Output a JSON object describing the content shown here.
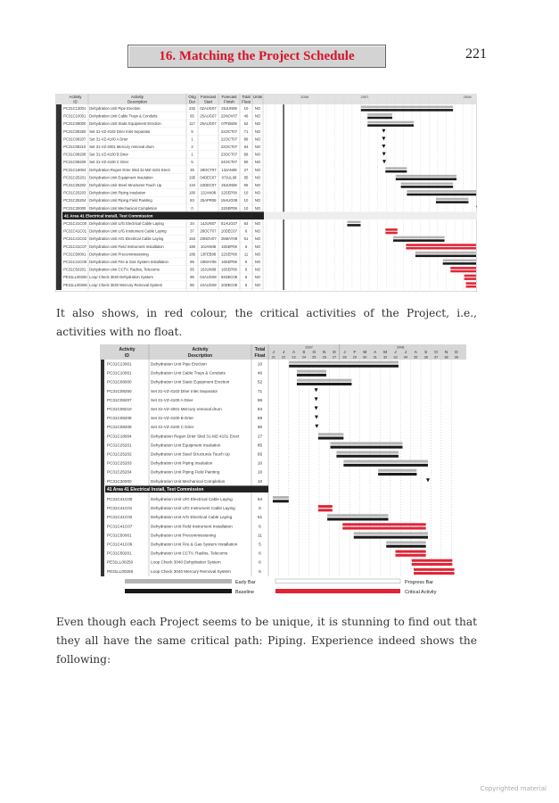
{
  "header": {
    "chapter_title": "16. Matching the Project Schedule",
    "page_number": "221"
  },
  "paragraphs": [
    "It also shows, in red colour, the critical activities of the Project, i.e., activities with no float.",
    "Even though each Project seems to be unique, it is stunning to find out that they all have the same critical path: Piping. Experience indeed shows the following:"
  ],
  "footer": "Copyrighted material",
  "colors": {
    "early": "#b4b4b4",
    "baseline": "#1a1a1a",
    "critical": "#e02535",
    "section": "#222222",
    "title": "#d4142a"
  },
  "figure1": {
    "columns": [
      "Activity ID",
      "Activity Description",
      "Orig Dur",
      "Forecast Start",
      "Forecast Finish",
      "Total Float",
      "Units"
    ],
    "years": [
      "2006",
      "2007",
      "2008"
    ]
  },
  "figure2": {
    "columns": [
      "Activity ID",
      "Activity Description",
      "Total Float"
    ],
    "years": [
      "2007",
      "2008"
    ],
    "months": [
      "J",
      "J",
      "A",
      "S",
      "O",
      "N",
      "D",
      "J",
      "F",
      "M",
      "A",
      "M",
      "J",
      "J",
      "A",
      "S",
      "O",
      "N",
      "D"
    ],
    "periods": [
      "21",
      "22",
      "23",
      "24",
      "25",
      "26",
      "27",
      "28",
      "29",
      "30",
      "31",
      "32",
      "33",
      "34",
      "35",
      "36",
      "37",
      "38",
      "39"
    ],
    "legend": {
      "early": "Early Bar",
      "baseline": "Baseline",
      "progress": "Progress Bar",
      "critical": "Critical Activity"
    }
  },
  "section_label": "41  Area 41 Electrical Install, Test Commission",
  "rows": [
    {
      "id": "PC31C13001",
      "desc": "Dehydration Unit Pipe Erection",
      "dur": "232",
      "start": "02AUG07",
      "finish": "25JUN08",
      "float": "10",
      "units": "NO",
      "type": "normal"
    },
    {
      "id": "PC31C10001",
      "desc": "Dehydration Unit Cable Trays & Conduits",
      "dur": "65",
      "start": "25AUG07",
      "finish": "22NOV07",
      "float": "46",
      "units": "NO",
      "type": "normal"
    },
    {
      "id": "PC31C08000",
      "desc": "Dehydration Unit Static Equipment Erection",
      "dur": "117",
      "start": "25AUG07",
      "finish": "07FEB08",
      "float": "52",
      "units": "NO",
      "type": "normal"
    },
    {
      "id": "PC31C08250",
      "desc": "Set 31-VZ-4102 Drier Inlet Separator",
      "dur": "5",
      "start": "",
      "finish": "22OCT07",
      "float": "71",
      "units": "NO",
      "type": "milestone"
    },
    {
      "id": "PC31C08207",
      "desc": "Set 31-VZ-4100 A Drier",
      "dur": "1",
      "start": "",
      "finish": "22OCT07",
      "float": "86",
      "units": "NO",
      "type": "milestone"
    },
    {
      "id": "PC31C08210",
      "desc": "Set 31-VZ-4001 Mercury removal drum",
      "dur": "2",
      "start": "",
      "finish": "22OCT07",
      "float": "84",
      "units": "NO",
      "type": "milestone"
    },
    {
      "id": "PC31C08208",
      "desc": "Set 31-VZ-4100 B Drier",
      "dur": "1",
      "start": "",
      "finish": "23OCT07",
      "float": "89",
      "units": "NO",
      "type": "milestone"
    },
    {
      "id": "PC31C08209",
      "desc": "Set 31-VZ-4100 C Drier",
      "dur": "5",
      "start": "",
      "finish": "24OCT07",
      "float": "90",
      "units": "NO",
      "type": "milestone"
    },
    {
      "id": "PC31C18004",
      "desc": "Dehydration Regen Drier Skid 31-MZ-4101 Erect",
      "dur": "35",
      "start": "28OCT07",
      "finish": "13JAN08",
      "float": "27",
      "units": "NO",
      "type": "normal"
    },
    {
      "id": "PC31C25201",
      "desc": "Dehydration Unit Equipment Insulation",
      "dur": "195",
      "start": "04DEC07",
      "finish": "07JUL08",
      "float": "85",
      "units": "NO",
      "type": "normal"
    },
    {
      "id": "PC31C25202",
      "desc": "Dehydration Unit Steel Structures Touch Up",
      "dur": "134",
      "start": "22DEC07",
      "finish": "25JUN08",
      "float": "65",
      "units": "NO",
      "type": "normal"
    },
    {
      "id": "PC31C25203",
      "desc": "Dehydration Unit Piping Insulation",
      "dur": "180",
      "start": "13JAN08",
      "finish": "22SEP08",
      "float": "10",
      "units": "NO",
      "type": "normal"
    },
    {
      "id": "PC31C25204",
      "desc": "Dehydration Unit Piping Field Painting",
      "dur": "93",
      "start": "25APR08",
      "finish": "19AUG08",
      "float": "10",
      "units": "NO",
      "type": "normal"
    },
    {
      "id": "PC31C30000",
      "desc": "Dehydration Unit Mechanical Completion",
      "dur": "0",
      "start": "",
      "finish": "22SEP08",
      "float": "10",
      "units": "NO",
      "type": "milestone"
    },
    {
      "id": "PC31C41C00",
      "desc": "Dehydration Unit U/G Electrical Cable Laying",
      "dur": "34",
      "start": "14JUN07",
      "finish": "01AUG07",
      "float": "64",
      "units": "NO",
      "type": "normal"
    },
    {
      "id": "PC31C41C01",
      "desc": "Dehydration Unit U/G Instrument Cable Laying",
      "dur": "37",
      "start": "28OCT07",
      "finish": "10DEC07",
      "float": "6",
      "units": "NO",
      "type": "critical"
    },
    {
      "id": "PC31C41C02",
      "desc": "Dehydration Unit A/G Electrical Cable Laying",
      "dur": "153",
      "start": "25NOV07",
      "finish": "25MAY08",
      "float": "51",
      "units": "NO",
      "type": "normal"
    },
    {
      "id": "PC31C41C07",
      "desc": "Dehydration Unit Field Instrument Installation",
      "dur": "180",
      "start": "10JAN08",
      "finish": "16SEP08",
      "float": "6",
      "units": "NO",
      "type": "critical"
    },
    {
      "id": "PC31C50001",
      "desc": "Dehydration Unit Precommissioning",
      "dur": "186",
      "start": "13FEB08",
      "finish": "22SEP08",
      "float": "11",
      "units": "NO",
      "type": "normal"
    },
    {
      "id": "PC31C41C06",
      "desc": "Dehydration Unit Fire & Gas System Installation",
      "dur": "95",
      "start": "19MAY08",
      "finish": "16SEP08",
      "float": "5",
      "units": "NO",
      "type": "normal"
    },
    {
      "id": "PC31C50201",
      "desc": "Dehydration Unit CCTV, Radios, Telecoms",
      "dur": "65",
      "start": "16JUN08",
      "finish": "16SEP08",
      "float": "6",
      "units": "NO",
      "type": "critical"
    },
    {
      "id": "PE31LL00250",
      "desc": "Loop Check 3040 Dehydration System",
      "dur": "95",
      "start": "04AUG08",
      "finish": "04DEC08",
      "float": "6",
      "units": "NO",
      "type": "critical"
    },
    {
      "id": "PE31LL00256",
      "desc": "Loop Check 3040 Mercury Removal System",
      "dur": "86",
      "start": "10AUG08",
      "finish": "10DEC08",
      "float": "6",
      "units": "NO",
      "type": "critical"
    }
  ]
}
